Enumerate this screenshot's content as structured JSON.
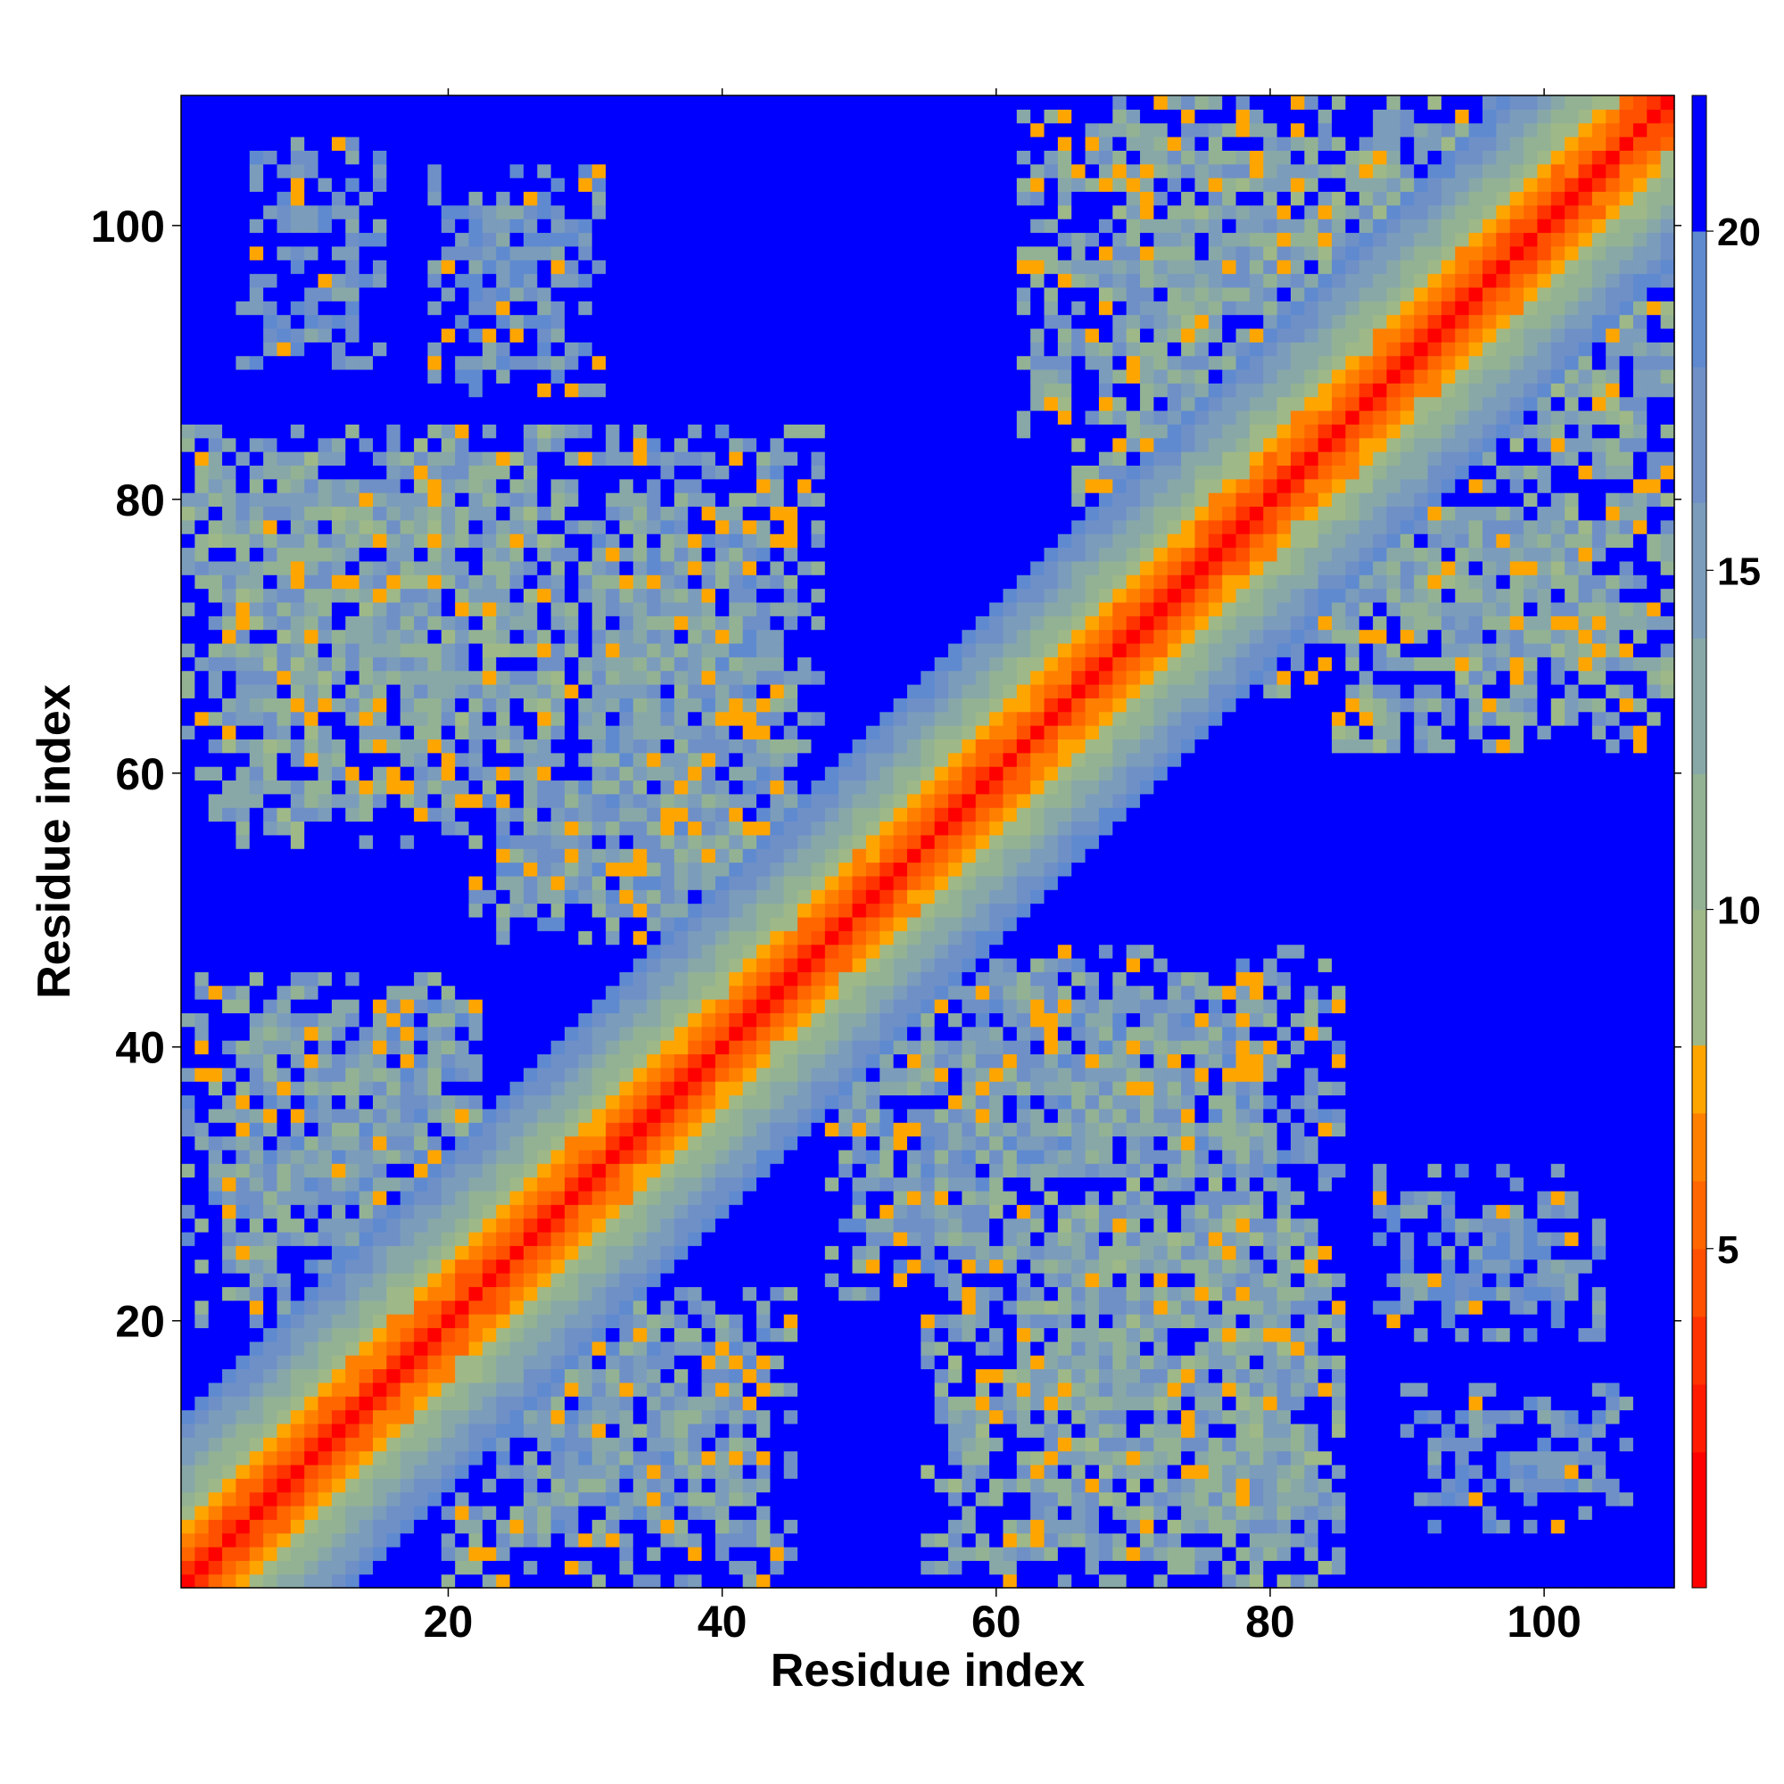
{
  "chart_data": {
    "type": "heatmap",
    "title": "",
    "xlabel": "Residue index",
    "ylabel": "Residue index",
    "n_residues": 109,
    "xlim": [
      0.5,
      109.5
    ],
    "ylim": [
      0.5,
      109.5
    ],
    "xticks": [
      20,
      40,
      60,
      80,
      100
    ],
    "yticks": [
      20,
      40,
      60,
      80,
      100
    ],
    "colorbar": {
      "ticks": [
        5,
        10,
        15,
        20
      ],
      "min": 0,
      "max": 22,
      "levels": [
        {
          "upper": 2,
          "color": "#ff0000"
        },
        {
          "upper": 3,
          "color": "#ff1a00"
        },
        {
          "upper": 4,
          "color": "#ff3300"
        },
        {
          "upper": 5,
          "color": "#ff5000"
        },
        {
          "upper": 6,
          "color": "#ff6600"
        },
        {
          "upper": 7,
          "color": "#ff8000"
        },
        {
          "upper": 8,
          "color": "#ffa500"
        },
        {
          "upper": 10,
          "color": "#9fb887"
        },
        {
          "upper": 12,
          "color": "#93b294"
        },
        {
          "upper": 14,
          "color": "#88a8a8"
        },
        {
          "upper": 16,
          "color": "#7b9cbb"
        },
        {
          "upper": 18,
          "color": "#6f90c6"
        },
        {
          "upper": 20,
          "color": "#5f8ad0"
        },
        {
          "upper": 22,
          "color": "#0000ff"
        }
      ]
    },
    "matrix_description": "Symmetric residue-residue distance map (Angstrom); near-diagonal distances 0-5, off-diagonal contact clusters 10-20, background >20",
    "diagonal_profile": [
      {
        "offset": 0,
        "value": 1.0
      },
      {
        "offset": 1,
        "value": 3.8
      },
      {
        "offset": 2,
        "value": 5.5
      },
      {
        "offset": 3,
        "value": 6.5
      },
      {
        "offset": 4,
        "value": 7.5
      },
      {
        "offset": 5,
        "value": 9.0
      },
      {
        "offset": 6,
        "value": 10.5
      },
      {
        "offset": 7,
        "value": 12.0
      },
      {
        "offset": 8,
        "value": 13.0
      },
      {
        "offset": 9,
        "value": 14.5
      },
      {
        "offset": 10,
        "value": 16.0
      },
      {
        "offset": 11,
        "value": 17.5
      },
      {
        "offset": 12,
        "value": 19.0
      },
      {
        "offset": 13,
        "value": 21.0
      }
    ],
    "clusters": [
      {
        "x": [
          1,
          30
        ],
        "y": [
          60,
          85
        ],
        "value": 14
      },
      {
        "x": [
          22,
          47
        ],
        "y": [
          48,
          82
        ],
        "value": 15
      },
      {
        "x": [
          2,
          22
        ],
        "y": [
          22,
          45
        ],
        "value": 15
      },
      {
        "x": [
          20,
          45
        ],
        "y": [
          1,
          22
        ],
        "value": 15
      },
      {
        "x": [
          48,
          85
        ],
        "y": [
          30,
          47
        ],
        "value": 15
      },
      {
        "x": [
          55,
          82
        ],
        "y": [
          2,
          30
        ],
        "value": 14
      },
      {
        "x": [
          66,
          104
        ],
        "y": [
          80,
          109
        ],
        "value": 14
      },
      {
        "x": [
          85,
          108
        ],
        "y": [
          62,
          88
        ],
        "value": 14
      },
      {
        "x": [
          5,
          15
        ],
        "y": [
          96,
          106
        ],
        "value": 18
      },
      {
        "x": [
          20,
          30
        ],
        "y": [
          91,
          104
        ],
        "value": 17
      },
      {
        "x": [
          88,
          104
        ],
        "y": [
          19,
          31
        ],
        "value": 17
      },
      {
        "x": [
          90,
          102
        ],
        "y": [
          5,
          15
        ],
        "value": 18
      }
    ]
  }
}
